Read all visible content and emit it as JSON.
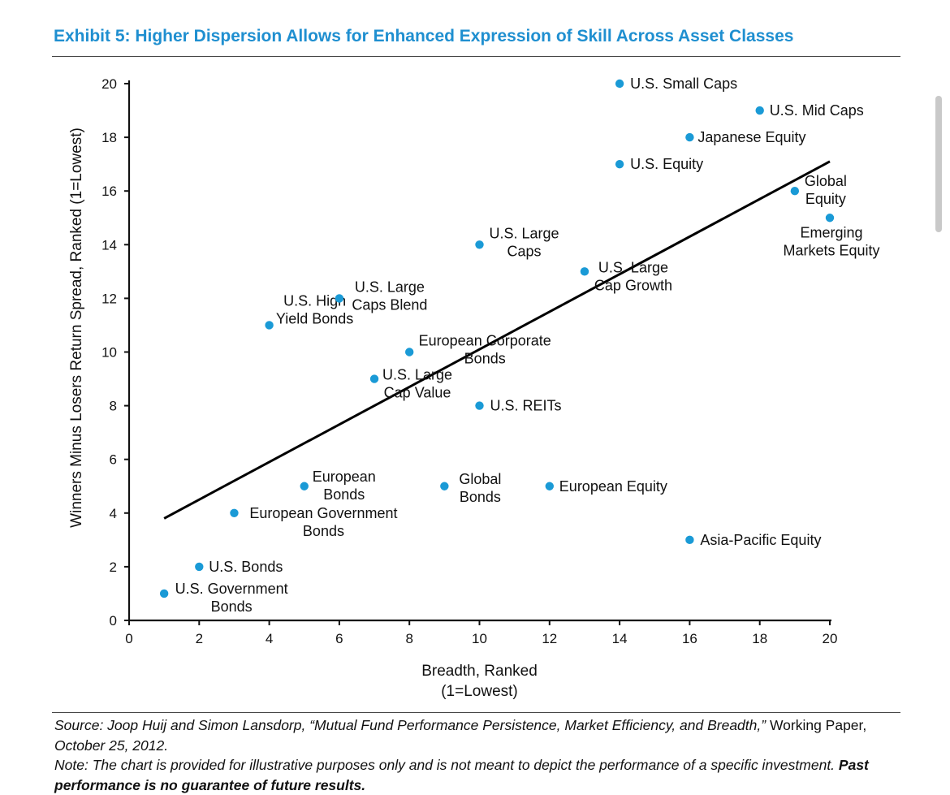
{
  "title": "Exhibit 5: Higher Dispersion Allows for Enhanced Expression of Skill Across Asset Classes",
  "chart_data": {
    "type": "scatter",
    "xlabel": [
      "Breadth, Ranked",
      "(1=Lowest)"
    ],
    "ylabel": "Winners Minus Losers Return Spread, Ranked (1=Lowest)",
    "xlim": [
      0,
      20
    ],
    "ylim": [
      0,
      20
    ],
    "xticks": [
      0,
      2,
      4,
      6,
      8,
      10,
      12,
      14,
      16,
      18,
      20
    ],
    "yticks": [
      0,
      2,
      4,
      6,
      8,
      10,
      12,
      14,
      16,
      18,
      20
    ],
    "grid": false,
    "point_color": "#1a9ad6",
    "trendline": {
      "x": [
        1,
        20
      ],
      "y": [
        3.8,
        17.1
      ]
    },
    "points": [
      {
        "x": 1,
        "y": 1,
        "label": [
          "U.S. Government",
          "Bonds"
        ]
      },
      {
        "x": 2,
        "y": 2,
        "label": [
          "U.S. Bonds"
        ]
      },
      {
        "x": 3,
        "y": 4,
        "label": [
          "European Government",
          "Bonds"
        ]
      },
      {
        "x": 4,
        "y": 11,
        "label": [
          "U.S. High",
          "Yield Bonds"
        ]
      },
      {
        "x": 5,
        "y": 5,
        "label": [
          "European",
          "Bonds"
        ]
      },
      {
        "x": 6,
        "y": 12,
        "label": [
          "U.S. Large",
          "Caps Blend"
        ]
      },
      {
        "x": 7,
        "y": 9,
        "label": [
          "U.S. Large",
          "Cap Value"
        ]
      },
      {
        "x": 8,
        "y": 10,
        "label": [
          "European Corporate",
          "Bonds"
        ]
      },
      {
        "x": 9,
        "y": 5,
        "label": [
          "Global",
          "Bonds"
        ]
      },
      {
        "x": 10,
        "y": 14,
        "label": [
          "U.S. Large",
          "Caps"
        ]
      },
      {
        "x": 10,
        "y": 8,
        "label": [
          "U.S. REITs"
        ]
      },
      {
        "x": 12,
        "y": 5,
        "label": [
          "European Equity"
        ]
      },
      {
        "x": 13,
        "y": 13,
        "label": [
          "U.S. Large",
          "Cap Growth"
        ]
      },
      {
        "x": 14,
        "y": 20,
        "label": [
          "U.S. Small Caps"
        ]
      },
      {
        "x": 14,
        "y": 17,
        "label": [
          "U.S. Equity"
        ]
      },
      {
        "x": 16,
        "y": 18,
        "label": [
          "Japanese Equity"
        ]
      },
      {
        "x": 16,
        "y": 3,
        "label": [
          "Asia-Pacific Equity"
        ]
      },
      {
        "x": 18,
        "y": 19,
        "label": [
          "U.S. Mid Caps"
        ]
      },
      {
        "x": 19,
        "y": 16,
        "label": [
          "Global",
          "Equity"
        ]
      },
      {
        "x": 20,
        "y": 15,
        "label": [
          "Emerging",
          "Markets Equity"
        ]
      }
    ]
  },
  "footer": {
    "source_italic": "Source: Joop Huij and Simon Lansdorp, “Mutual Fund Performance Persistence, Market Efficiency, and Breadth,”",
    "source_plain": " Working Paper,",
    "source_date": " October 25, 2012.",
    "note_italic": "Note: The chart is provided for illustrative purposes only and is not meant to depict the performance of a specific investment.",
    "note_bold": " Past performance is no guarantee of future results."
  }
}
